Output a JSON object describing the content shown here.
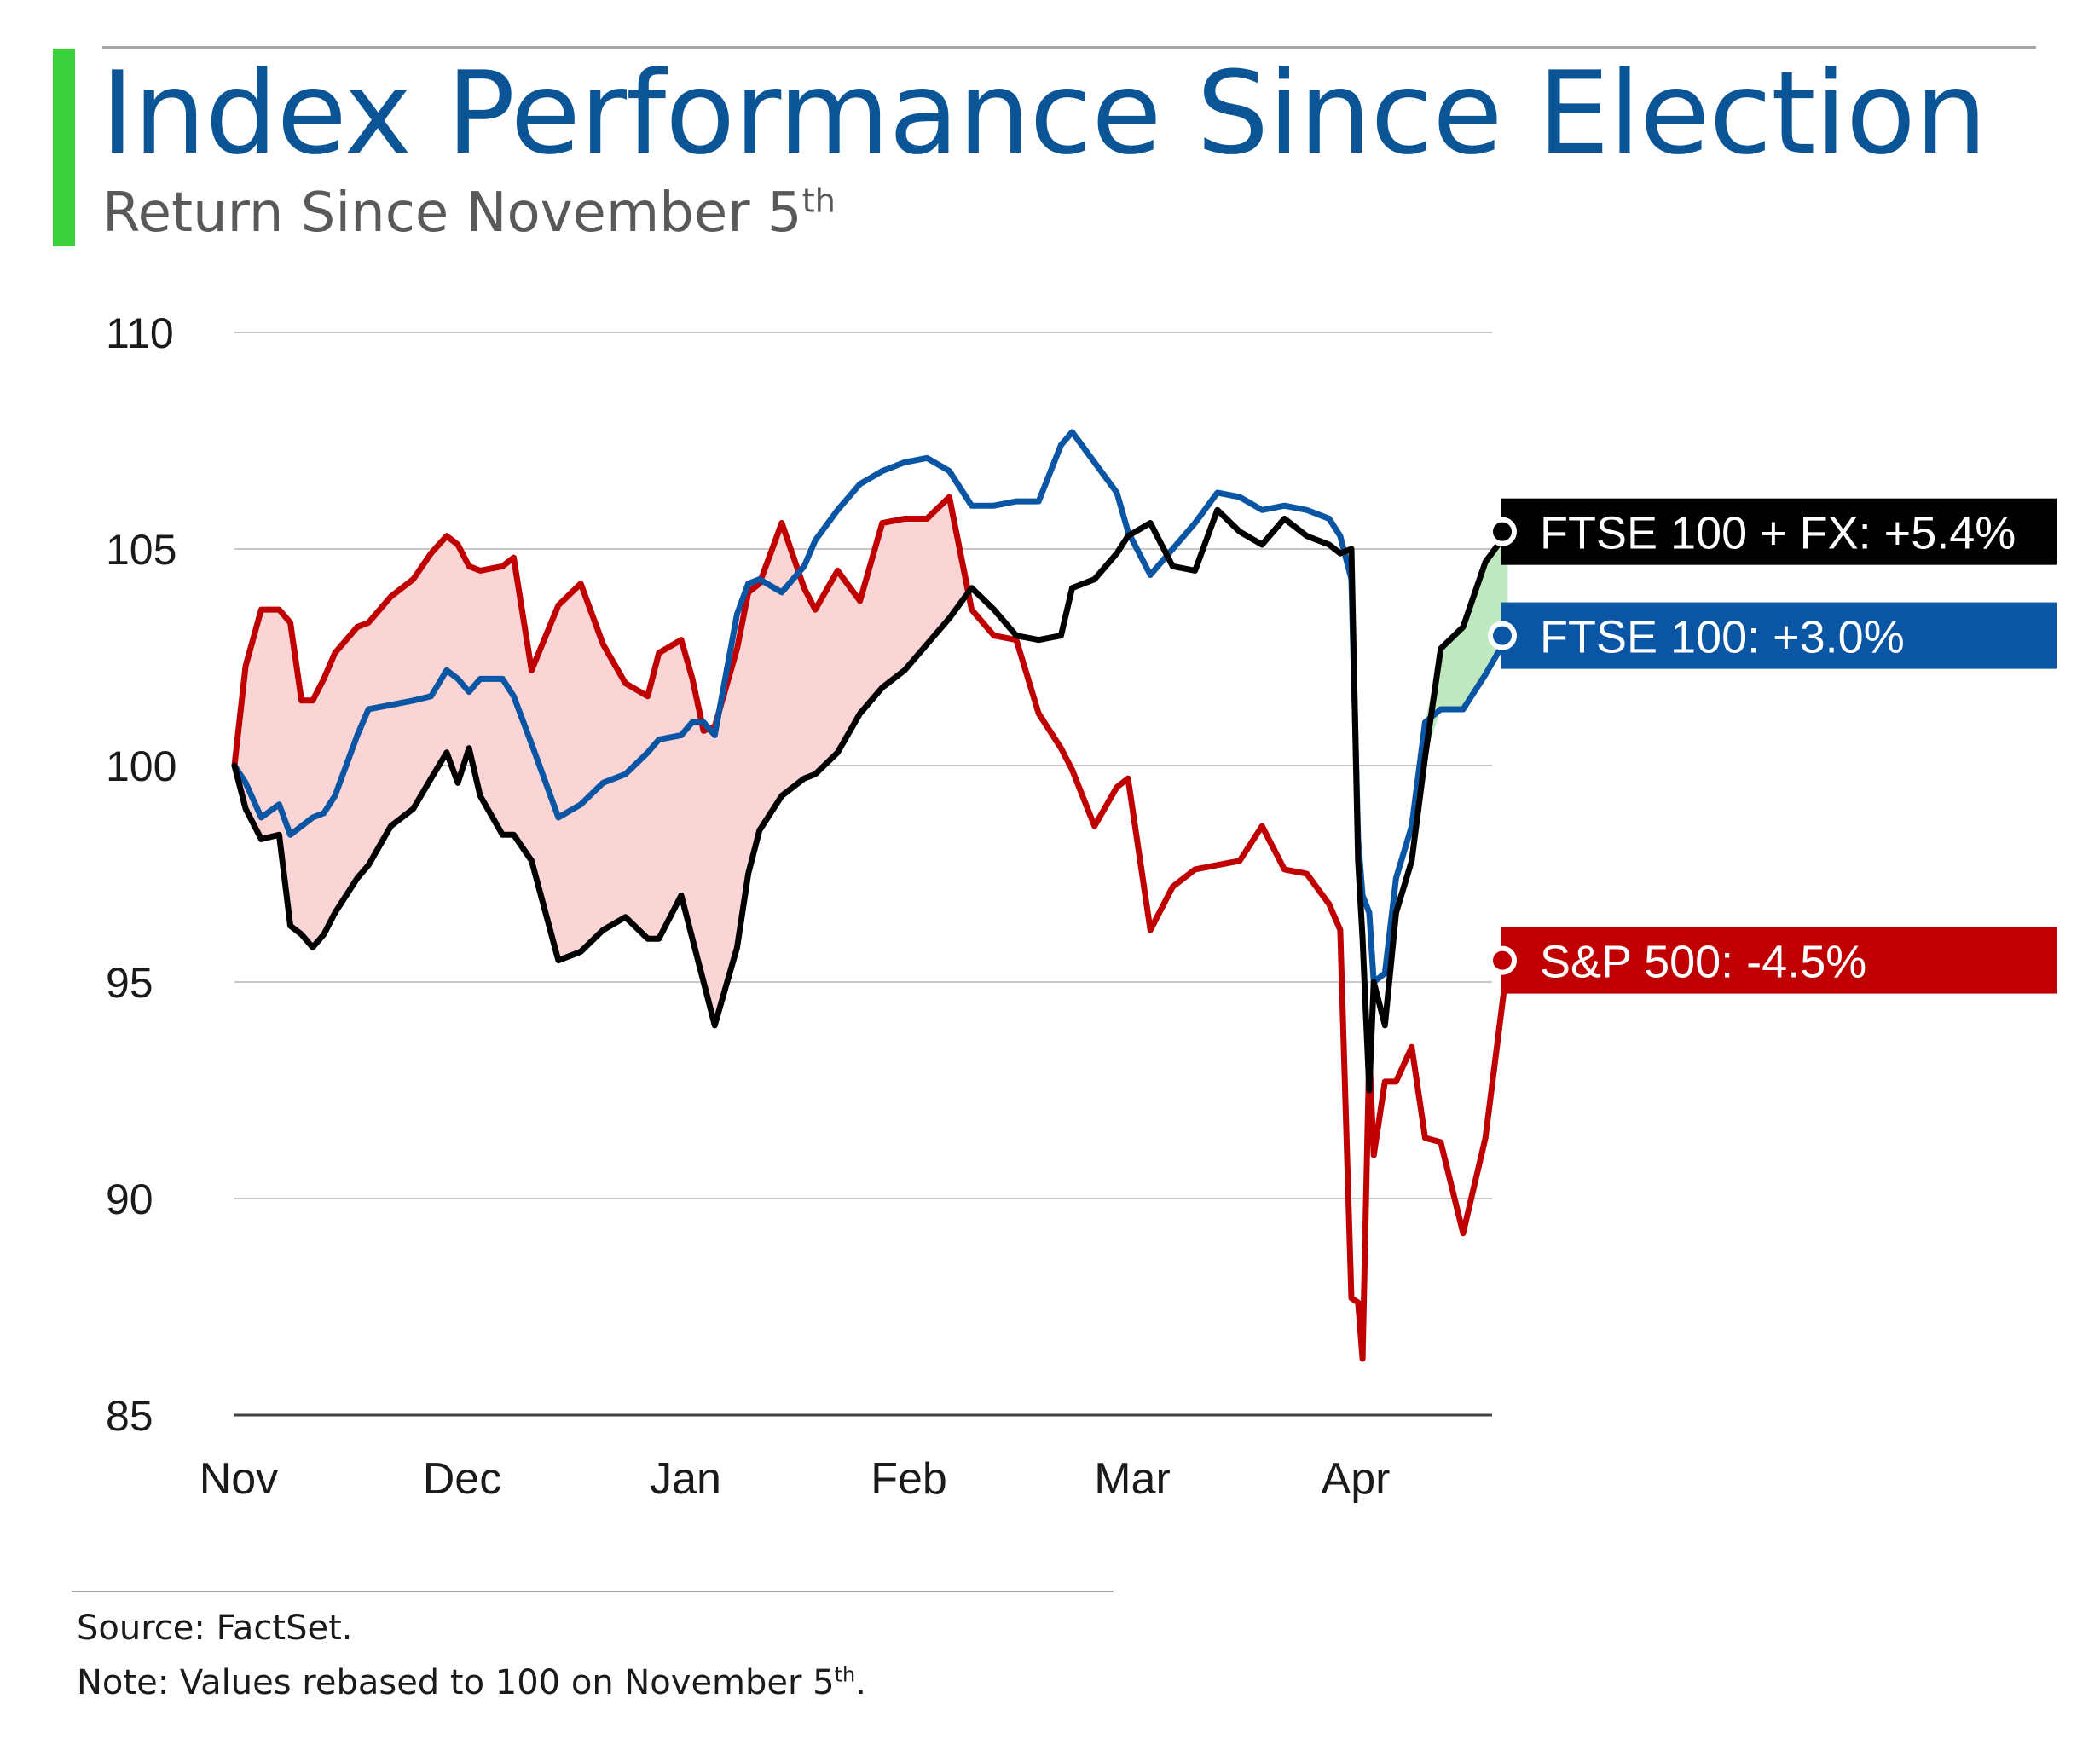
{
  "header": {
    "title": "Index Performance Since Election",
    "subtitle": "Return Since November 5",
    "subtitle_superscript": "th"
  },
  "footer": {
    "source": "Source: FactSet.",
    "note": "Note: Values rebased to 100 on November 5",
    "note_superscript": "th",
    "note_suffix": "."
  },
  "colors": {
    "title": "#0b5596",
    "accent_bar": "#3bd13b",
    "ftse_fx": "#000000",
    "ftse": "#0b56a4",
    "sp500": "#c00000",
    "fill_negative": "#fbd5d5",
    "fill_positive": "#bfe8bf",
    "grid": "#c8c8c8",
    "axis": "#404040"
  },
  "chart_data": {
    "type": "line",
    "title": "Index Performance Since Election",
    "subtitle": "Return Since November 5th",
    "xlabel": "",
    "ylabel": "",
    "ylim": [
      85,
      110
    ],
    "y_ticks": [
      110,
      105,
      100,
      95,
      90,
      85
    ],
    "xlim": [
      0,
      5.7
    ],
    "x_ticks": [
      {
        "label": "Nov",
        "x": 0
      },
      {
        "label": "Dec",
        "x": 1
      },
      {
        "label": "Jan",
        "x": 2
      },
      {
        "label": "Feb",
        "x": 3
      },
      {
        "label": "Mar",
        "x": 4
      },
      {
        "label": "Apr",
        "x": 5
      }
    ],
    "x_unit": "months since November 5",
    "grid": true,
    "legend": "end-of-line labels on right",
    "shading": [
      {
        "between": [
          "FTSE 100 + FX",
          "S&P 500"
        ],
        "where": "S&P 500 above",
        "color": "fill_negative"
      },
      {
        "between": [
          "FTSE 100 + FX",
          "FTSE 100"
        ],
        "where": "final segment",
        "color": "fill_positive"
      }
    ],
    "series": [
      {
        "name": "FTSE 100 + FX",
        "label": "FTSE 100 + FX: +5.4%",
        "color_key": "ftse_fx",
        "x": [
          0,
          0.05,
          0.12,
          0.2,
          0.25,
          0.3,
          0.35,
          0.4,
          0.45,
          0.55,
          0.6,
          0.7,
          0.8,
          0.88,
          0.95,
          1.0,
          1.05,
          1.1,
          1.2,
          1.25,
          1.33,
          1.45,
          1.55,
          1.65,
          1.75,
          1.85,
          1.9,
          2.0,
          2.05,
          2.1,
          2.15,
          2.25,
          2.3,
          2.35,
          2.45,
          2.55,
          2.6,
          2.7,
          2.8,
          2.9,
          3.0,
          3.1,
          3.2,
          3.3,
          3.4,
          3.5,
          3.6,
          3.7,
          3.75,
          3.85,
          3.95,
          4.0,
          4.1,
          4.2,
          4.3,
          4.4,
          4.5,
          4.6,
          4.7,
          4.8,
          4.9,
          4.95,
          5.0,
          5.03,
          5.05,
          5.08,
          5.1,
          5.15,
          5.2,
          5.27,
          5.33,
          5.4,
          5.5,
          5.6,
          5.7
        ],
        "y": [
          100.0,
          99.0,
          98.3,
          98.4,
          96.3,
          96.1,
          95.8,
          96.1,
          96.6,
          97.4,
          97.7,
          98.6,
          99.0,
          99.7,
          100.3,
          99.6,
          100.4,
          99.3,
          98.4,
          98.4,
          97.8,
          95.5,
          95.7,
          96.2,
          96.5,
          96.0,
          96.0,
          97.0,
          96.0,
          95.0,
          94.0,
          95.8,
          97.5,
          98.5,
          99.3,
          99.7,
          99.8,
          100.3,
          101.2,
          101.8,
          102.2,
          102.8,
          103.4,
          104.1,
          103.6,
          103.0,
          102.9,
          103.0,
          104.1,
          104.3,
          104.9,
          105.3,
          105.6,
          104.6,
          104.5,
          105.9,
          105.4,
          105.1,
          105.7,
          105.3,
          105.1,
          104.9,
          105.0,
          97.8,
          96.0,
          92.5,
          95.0,
          94.0,
          96.6,
          97.8,
          100.2,
          102.7,
          103.2,
          104.7,
          105.4
        ]
      },
      {
        "name": "FTSE 100",
        "label": "FTSE 100: +3.0%",
        "color_key": "ftse",
        "x": [
          0,
          0.05,
          0.12,
          0.2,
          0.25,
          0.3,
          0.35,
          0.4,
          0.45,
          0.55,
          0.6,
          0.7,
          0.8,
          0.88,
          0.95,
          1.0,
          1.05,
          1.1,
          1.2,
          1.25,
          1.33,
          1.45,
          1.55,
          1.65,
          1.75,
          1.85,
          1.9,
          2.0,
          2.05,
          2.1,
          2.15,
          2.25,
          2.3,
          2.35,
          2.45,
          2.55,
          2.6,
          2.7,
          2.8,
          2.9,
          3.0,
          3.1,
          3.2,
          3.3,
          3.4,
          3.5,
          3.6,
          3.7,
          3.75,
          3.85,
          3.95,
          4.0,
          4.1,
          4.2,
          4.3,
          4.4,
          4.5,
          4.6,
          4.7,
          4.8,
          4.9,
          4.95,
          5.0,
          5.03,
          5.05,
          5.08,
          5.1,
          5.15,
          5.2,
          5.27,
          5.33,
          5.4,
          5.5,
          5.6,
          5.7
        ],
        "y": [
          100.0,
          99.6,
          98.8,
          99.1,
          98.4,
          98.6,
          98.8,
          98.9,
          99.3,
          100.7,
          101.3,
          101.4,
          101.5,
          101.6,
          102.2,
          102.0,
          101.7,
          102.0,
          102.0,
          101.6,
          100.5,
          98.8,
          99.1,
          99.6,
          99.8,
          100.3,
          100.6,
          100.7,
          101.0,
          101.0,
          100.7,
          103.5,
          104.2,
          104.3,
          104.0,
          104.6,
          105.2,
          105.9,
          106.5,
          106.8,
          107.0,
          107.1,
          106.8,
          106.0,
          106.0,
          106.1,
          106.1,
          107.4,
          107.7,
          107.0,
          106.3,
          105.4,
          104.4,
          105.0,
          105.6,
          106.3,
          106.2,
          105.9,
          106.0,
          105.9,
          105.7,
          105.3,
          104.3,
          98.3,
          97.0,
          96.6,
          95.0,
          95.2,
          97.4,
          98.6,
          101.0,
          101.3,
          101.3,
          102.1,
          103.0
        ]
      },
      {
        "name": "S&P 500",
        "label": "S&P 500: -4.5%",
        "color_key": "sp500",
        "x": [
          0,
          0.05,
          0.12,
          0.2,
          0.25,
          0.3,
          0.35,
          0.4,
          0.45,
          0.55,
          0.6,
          0.7,
          0.8,
          0.88,
          0.95,
          1.0,
          1.05,
          1.1,
          1.2,
          1.25,
          1.33,
          1.45,
          1.55,
          1.65,
          1.75,
          1.85,
          1.9,
          2.0,
          2.05,
          2.1,
          2.15,
          2.25,
          2.3,
          2.35,
          2.45,
          2.55,
          2.6,
          2.7,
          2.8,
          2.9,
          3.0,
          3.1,
          3.2,
          3.3,
          3.4,
          3.5,
          3.6,
          3.7,
          3.75,
          3.85,
          3.95,
          4.0,
          4.1,
          4.2,
          4.3,
          4.4,
          4.5,
          4.6,
          4.7,
          4.8,
          4.9,
          4.95,
          5.0,
          5.03,
          5.05,
          5.08,
          5.1,
          5.15,
          5.2,
          5.27,
          5.33,
          5.4,
          5.5,
          5.6,
          5.7
        ],
        "y": [
          100.0,
          102.3,
          103.6,
          103.6,
          103.3,
          101.5,
          101.5,
          102.0,
          102.6,
          103.2,
          103.3,
          103.9,
          104.3,
          104.9,
          105.3,
          105.1,
          104.6,
          104.5,
          104.6,
          104.8,
          102.2,
          103.7,
          104.2,
          102.8,
          101.9,
          101.6,
          102.6,
          102.9,
          102.0,
          100.8,
          100.9,
          102.7,
          104.0,
          104.2,
          105.6,
          104.1,
          103.6,
          104.5,
          103.8,
          105.6,
          105.7,
          105.7,
          106.2,
          103.6,
          103.0,
          102.9,
          101.2,
          100.4,
          99.9,
          98.6,
          99.5,
          99.7,
          96.2,
          97.2,
          97.6,
          97.7,
          97.8,
          98.6,
          97.6,
          97.5,
          96.8,
          96.2,
          87.7,
          87.6,
          86.3,
          93.4,
          91.0,
          92.7,
          92.7,
          93.5,
          91.4,
          91.3,
          89.2,
          91.4,
          95.5
        ]
      }
    ]
  }
}
